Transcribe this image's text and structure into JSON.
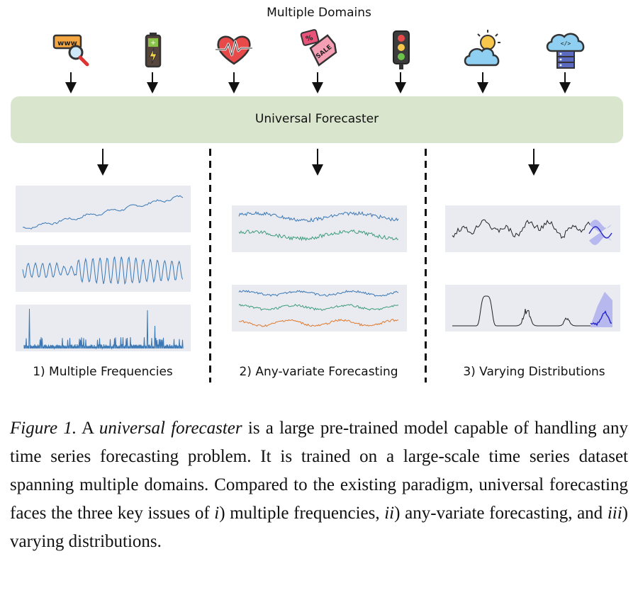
{
  "header": {
    "title": "Multiple Domains"
  },
  "domains": [
    {
      "icon": "www-search-icon"
    },
    {
      "icon": "battery-icon"
    },
    {
      "icon": "heartbeat-icon"
    },
    {
      "icon": "sale-tag-icon"
    },
    {
      "icon": "traffic-light-icon"
    },
    {
      "icon": "sun-cloud-icon"
    },
    {
      "icon": "cloud-server-icon"
    }
  ],
  "forecaster": {
    "label": "Universal Forecaster"
  },
  "sections": [
    {
      "label": "1) Multiple Frequencies"
    },
    {
      "label": "2) Any-variate Forecasting"
    },
    {
      "label": "3) Varying Distributions"
    }
  ],
  "caption": {
    "fig_label": "Figure 1.",
    "text_1": " A ",
    "emphasis": "universal forecaster",
    "text_2": " is a large pre-trained model capable of handling any time series forecasting problem. It is trained on a large-scale time series dataset spanning multiple domains. Compared to the existing paradigm, universal forecasting faces the three key issues of ",
    "i": "i",
    "text_3": ") multiple frequencies, ",
    "ii": "ii",
    "text_4": ") any-variate forecasting, and ",
    "iii": "iii",
    "text_5": ") varying distributions."
  },
  "colors": {
    "box": "#d9e6cd",
    "panel_bg": "#e9ebf1",
    "blue": "#3b78b5",
    "teal": "#3e9b7a",
    "orange": "#e07a2e",
    "forecast": "#2525c8"
  }
}
